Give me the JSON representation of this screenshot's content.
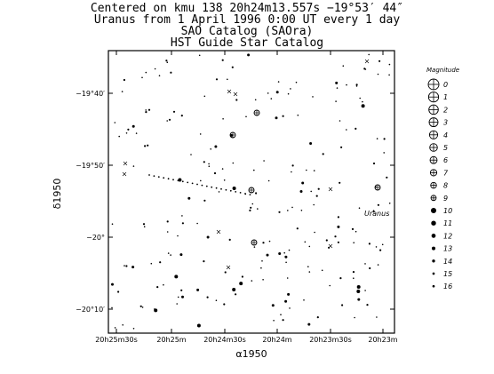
{
  "titles": [
    "Centered on kmu 138 20h24m13.557s  −19°53′ 44″",
    "Uranus from 1 April 1996 0:00 UT every 1 day",
    "SAO Catalog (SAOra)",
    "HST Guide Star Catalog"
  ],
  "chart_data": {
    "type": "scatter",
    "xlabel": "α1950",
    "ylabel": "δ1950",
    "x_ticks": [
      "20h25m30s",
      "20h25m",
      "20h24m30s",
      "20h24m",
      "20h23m30s",
      "20h23m"
    ],
    "y_ticks": [
      "−19°40′",
      "−19°50′",
      "−20°",
      "−20°10′"
    ],
    "legend": {
      "title": "Magnitude",
      "placement": "right",
      "entries": [
        "0",
        "1",
        "2",
        "3",
        "4",
        "5",
        "6",
        "7",
        "8",
        "9",
        "10",
        "11",
        "12",
        "13",
        "14",
        "15",
        "16"
      ]
    },
    "annotations": [
      "Uranus"
    ],
    "colors": {
      "background": "#ffffff",
      "ink": "#000000"
    }
  }
}
